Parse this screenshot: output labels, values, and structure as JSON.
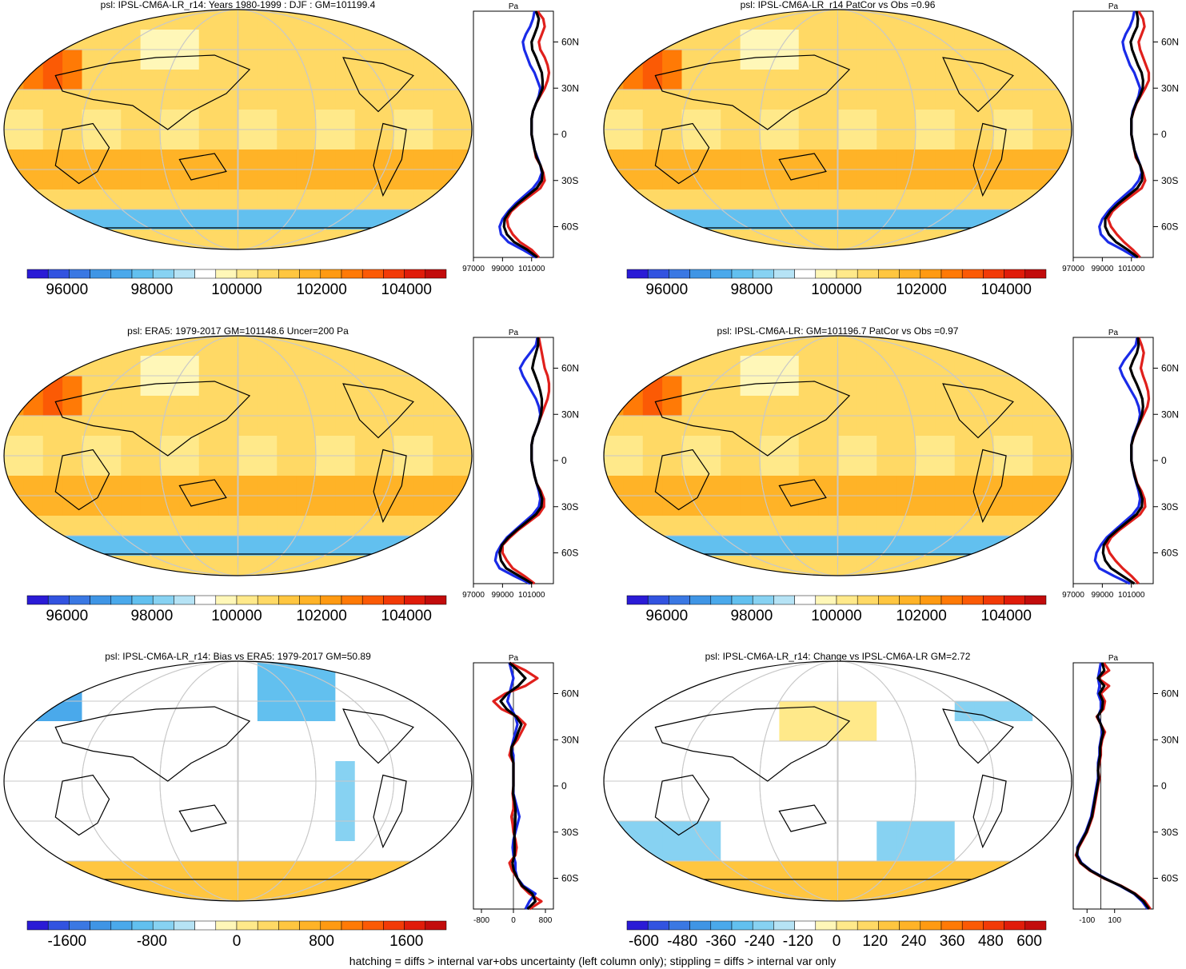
{
  "figure_caption": "hatching = diffs > internal var+obs uncertainty (left column only); stippling = diffs > internal var only",
  "variable": "psl",
  "profile_unit": "Pa",
  "latitude_labels": [
    "60N",
    "30N",
    "0",
    "30S",
    "60S"
  ],
  "colors": {
    "scale": [
      "#2a1bd6",
      "#3253e0",
      "#3a78e3",
      "#3f95e5",
      "#4aa9eb",
      "#62c0ef",
      "#87d2f2",
      "#b6e3f5",
      "#ffffff",
      "#fff7b8",
      "#ffe98a",
      "#ffd965",
      "#ffc640",
      "#ffb327",
      "#ff9a12",
      "#ff7a06",
      "#fb5a05",
      "#f23a07",
      "#e01c0a",
      "#c20c0c"
    ],
    "coast": "#000000",
    "graticule": "#c8c8c8",
    "line_model": "#e0201c",
    "line_obs": "#1a2be8",
    "line_mean": "#000000"
  },
  "chart_data": [
    {
      "type": "heatmap",
      "name": "model-climatology",
      "title": "psl: IPSL-CM6A-LR_r14: Years 1980-1999 : DJF : GM=101199.4",
      "colorbar_ticks": [
        "96000",
        "98000",
        "100000",
        "102000",
        "104000"
      ],
      "profile_ticks": [
        "97000",
        "99000",
        "101000"
      ],
      "profile_xlim": [
        97000,
        102500
      ],
      "profile_lat": [
        80,
        75,
        70,
        65,
        60,
        55,
        50,
        45,
        40,
        35,
        30,
        25,
        20,
        15,
        10,
        5,
        0,
        -5,
        -10,
        -15,
        -20,
        -25,
        -30,
        -35,
        -40,
        -45,
        -50,
        -55,
        -60,
        -65,
        -70,
        -75,
        -80
      ],
      "profile_series": [
        {
          "name": "model",
          "values": [
            101400,
            101800,
            101900,
            101700,
            101500,
            101600,
            101900,
            102100,
            102200,
            102100,
            101900,
            101600,
            101300,
            101100,
            101000,
            101000,
            101000,
            101100,
            101200,
            101300,
            101600,
            101800,
            101900,
            101600,
            100900,
            100200,
            99600,
            99300,
            99400,
            99700,
            100200,
            101000,
            101500
          ]
        },
        {
          "name": "obs",
          "values": [
            101200,
            101100,
            100900,
            100600,
            100400,
            100500,
            100700,
            100900,
            101200,
            101400,
            101600,
            101500,
            101300,
            101100,
            101000,
            101000,
            101000,
            101100,
            101200,
            101400,
            101600,
            101700,
            101500,
            101100,
            100500,
            99900,
            99400,
            99000,
            98800,
            98900,
            99400,
            100400,
            101300
          ]
        },
        {
          "name": "mean",
          "values": [
            101300,
            101500,
            101400,
            101200,
            101000,
            101050,
            101300,
            101500,
            101700,
            101750,
            101750,
            101550,
            101300,
            101100,
            101000,
            101000,
            101000,
            101100,
            101200,
            101350,
            101600,
            101750,
            101700,
            101350,
            100700,
            100050,
            99500,
            99150,
            99100,
            99300,
            99800,
            100700,
            101400
          ]
        }
      ]
    },
    {
      "type": "heatmap",
      "name": "model-climatology-patcor",
      "title": "psl: IPSL-CM6A-LR_r14 PatCor vs Obs =0.96",
      "colorbar_ticks": [
        "96000",
        "98000",
        "100000",
        "102000",
        "104000"
      ],
      "profile_ticks": [
        "97000",
        "99000",
        "101000"
      ],
      "profile_xlim": [
        97000,
        102500
      ],
      "profile_lat": [
        80,
        75,
        70,
        65,
        60,
        55,
        50,
        45,
        40,
        35,
        30,
        25,
        20,
        15,
        10,
        5,
        0,
        -5,
        -10,
        -15,
        -20,
        -25,
        -30,
        -35,
        -40,
        -45,
        -50,
        -55,
        -60,
        -65,
        -70,
        -75,
        -80
      ],
      "profile_series": [
        {
          "name": "model",
          "values": [
            101500,
            101800,
            101900,
            101700,
            101500,
            101600,
            101800,
            102000,
            102200,
            102200,
            101950,
            101650,
            101350,
            101150,
            101000,
            101000,
            101000,
            101100,
            101200,
            101300,
            101600,
            101800,
            101950,
            101700,
            101000,
            100300,
            99700,
            99400,
            99600,
            100000,
            100500,
            101100,
            101600
          ]
        },
        {
          "name": "obs",
          "values": [
            101200,
            101100,
            100900,
            100600,
            100400,
            100500,
            100700,
            100900,
            101200,
            101400,
            101600,
            101500,
            101300,
            101100,
            101000,
            101000,
            101000,
            101100,
            101200,
            101400,
            101600,
            101700,
            101500,
            101100,
            100500,
            99900,
            99400,
            99000,
            98800,
            98900,
            99400,
            100400,
            101300
          ]
        },
        {
          "name": "mean",
          "values": [
            101350,
            101450,
            101400,
            101150,
            100950,
            101050,
            101250,
            101450,
            101700,
            101800,
            101780,
            101580,
            101330,
            101130,
            101000,
            101000,
            101000,
            101100,
            101200,
            101350,
            101600,
            101750,
            101730,
            101400,
            100750,
            100100,
            99550,
            99200,
            99200,
            99450,
            99950,
            100750,
            101450
          ]
        }
      ]
    },
    {
      "type": "heatmap",
      "name": "observation-climatology",
      "title": "psl: ERA5: 1979-2017 GM=101148.6 Uncer=200 Pa",
      "colorbar_ticks": [
        "96000",
        "98000",
        "100000",
        "102000",
        "104000"
      ],
      "profile_ticks": [
        "97000",
        "99000",
        "101000"
      ],
      "profile_xlim": [
        97000,
        102500
      ],
      "profile_lat": [
        80,
        75,
        70,
        65,
        60,
        55,
        50,
        45,
        40,
        35,
        30,
        25,
        20,
        15,
        10,
        5,
        0,
        -5,
        -10,
        -15,
        -20,
        -25,
        -30,
        -35,
        -40,
        -45,
        -50,
        -55,
        -60,
        -65,
        -70,
        -75,
        -80
      ],
      "profile_series": [
        {
          "name": "model",
          "values": [
            101500,
            101600,
            101700,
            101800,
            101900,
            102100,
            102200,
            102200,
            102100,
            101900,
            101700,
            101500,
            101300,
            101100,
            101000,
            101000,
            101000,
            101100,
            101200,
            101350,
            101650,
            101850,
            101850,
            101500,
            100800,
            100100,
            99500,
            99000,
            99000,
            99300,
            99700,
            100500,
            101200
          ]
        },
        {
          "name": "obs",
          "values": [
            101400,
            101300,
            100900,
            100500,
            100200,
            100400,
            100700,
            101000,
            101300,
            101500,
            101600,
            101500,
            101300,
            101100,
            101000,
            101000,
            101000,
            101100,
            101200,
            101350,
            101500,
            101600,
            101500,
            101100,
            100500,
            99900,
            99300,
            98900,
            98600,
            98500,
            98800,
            99800,
            100900
          ]
        },
        {
          "name": "mean",
          "values": [
            101450,
            101450,
            101300,
            101150,
            101050,
            101250,
            101450,
            101600,
            101700,
            101700,
            101650,
            101500,
            101300,
            101100,
            101000,
            101000,
            101000,
            101100,
            101200,
            101350,
            101575,
            101725,
            101675,
            101300,
            100650,
            100000,
            99400,
            98950,
            98800,
            98900,
            99250,
            100150,
            101050
          ]
        }
      ]
    },
    {
      "type": "heatmap",
      "name": "multimodel-climatology",
      "title": "psl: IPSL-CM6A-LR: GM=101196.7 PatCor vs Obs =0.97",
      "colorbar_ticks": [
        "96000",
        "98000",
        "100000",
        "102000",
        "104000"
      ],
      "profile_ticks": [
        "97000",
        "99000",
        "101000"
      ],
      "profile_xlim": [
        97000,
        102500
      ],
      "profile_lat": [
        80,
        75,
        70,
        65,
        60,
        55,
        50,
        45,
        40,
        35,
        30,
        25,
        20,
        15,
        10,
        5,
        0,
        -5,
        -10,
        -15,
        -20,
        -25,
        -30,
        -35,
        -40,
        -45,
        -50,
        -55,
        -60,
        -65,
        -70,
        -75,
        -80
      ],
      "profile_series": [
        {
          "name": "model",
          "values": [
            101500,
            101700,
            101850,
            101750,
            101650,
            101800,
            102000,
            102150,
            102200,
            102100,
            101850,
            101600,
            101350,
            101150,
            101000,
            101000,
            101000,
            101100,
            101250,
            101400,
            101700,
            101900,
            101950,
            101600,
            100900,
            100200,
            99600,
            99300,
            99500,
            99900,
            100400,
            101000,
            101500
          ]
        },
        {
          "name": "obs",
          "values": [
            101400,
            101300,
            100900,
            100500,
            100200,
            100400,
            100700,
            101000,
            101300,
            101500,
            101600,
            101500,
            101300,
            101100,
            101000,
            101000,
            101000,
            101100,
            101200,
            101350,
            101500,
            101600,
            101500,
            101100,
            100500,
            99900,
            99300,
            98900,
            98600,
            98500,
            98800,
            99800,
            100900
          ]
        },
        {
          "name": "mean",
          "values": [
            101450,
            101500,
            101380,
            101120,
            100920,
            101100,
            101350,
            101570,
            101750,
            101800,
            101730,
            101550,
            101330,
            101130,
            101000,
            101000,
            101000,
            101100,
            101220,
            101380,
            101600,
            101750,
            101720,
            101350,
            100700,
            100050,
            99450,
            99100,
            99050,
            99200,
            99600,
            100400,
            101200
          ]
        }
      ]
    },
    {
      "type": "heatmap",
      "name": "bias-vs-observations",
      "title": "psl: IPSL-CM6A-LR_r14: Bias vs ERA5: 1979-2017 GM=50.89",
      "colorbar_ticks": [
        "-1600",
        "-800",
        "0",
        "800",
        "1600"
      ],
      "profile_ticks": [
        "-800",
        "0",
        "800"
      ],
      "profile_xlim": [
        -1000,
        1000
      ],
      "profile_lat": [
        80,
        75,
        70,
        65,
        60,
        55,
        50,
        45,
        40,
        35,
        30,
        25,
        20,
        15,
        10,
        5,
        0,
        -5,
        -10,
        -15,
        -20,
        -25,
        -30,
        -35,
        -40,
        -45,
        -50,
        -55,
        -60,
        -65,
        -70,
        -75,
        -80
      ],
      "profile_series": [
        {
          "name": "model",
          "values": [
            -100,
            300,
            600,
            300,
            -200,
            -500,
            -300,
            100,
            300,
            200,
            100,
            -50,
            -100,
            0,
            0,
            0,
            0,
            -20,
            0,
            0,
            -50,
            -20,
            0,
            50,
            80,
            50,
            -100,
            -30,
            100,
            200,
            400,
            700,
            400
          ]
        },
        {
          "name": "obs",
          "values": [
            -100,
            -50,
            0,
            -50,
            -100,
            -150,
            -50,
            50,
            100,
            50,
            0,
            -50,
            0,
            0,
            0,
            0,
            0,
            0,
            50,
            100,
            150,
            100,
            50,
            0,
            -20,
            0,
            50,
            50,
            100,
            250,
            550,
            400,
            300
          ]
        },
        {
          "name": "mean",
          "values": [
            -100,
            120,
            300,
            120,
            -150,
            -320,
            -170,
            70,
            200,
            120,
            50,
            -50,
            -50,
            0,
            0,
            0,
            0,
            -10,
            25,
            50,
            50,
            40,
            25,
            25,
            30,
            25,
            -25,
            10,
            100,
            220,
            470,
            550,
            350
          ]
        }
      ]
    },
    {
      "type": "heatmap",
      "name": "change-vs-multimodel",
      "title": "psl: IPSL-CM6A-LR_r14: Change vs IPSL-CM6A-LR GM=2.72",
      "colorbar_ticks": [
        "-600",
        "-480",
        "-360",
        "-240",
        "-120",
        "0",
        "120",
        "240",
        "360",
        "480",
        "600"
      ],
      "profile_ticks": [
        "-100",
        "100"
      ],
      "profile_xlim": [
        -200,
        380
      ],
      "profile_lat": [
        80,
        75,
        70,
        65,
        60,
        55,
        50,
        45,
        40,
        35,
        30,
        25,
        20,
        15,
        10,
        5,
        0,
        -5,
        -10,
        -15,
        -20,
        -25,
        -30,
        -35,
        -40,
        -45,
        -50,
        -55,
        -60,
        -65,
        -70,
        -75,
        -80
      ],
      "profile_series": [
        {
          "name": "model",
          "values": [
            20,
            60,
            -20,
            60,
            0,
            30,
            20,
            -30,
            0,
            30,
            10,
            0,
            0,
            -10,
            -20,
            -10,
            -20,
            -30,
            -40,
            -50,
            -60,
            -80,
            -100,
            -130,
            -160,
            -180,
            -150,
            -80,
            20,
            150,
            250,
            320,
            360
          ]
        },
        {
          "name": "obs",
          "values": [
            0,
            -10,
            -20,
            -10,
            -20,
            0,
            0,
            -20,
            0,
            10,
            0,
            -10,
            -10,
            -20,
            -20,
            -20,
            -30,
            -40,
            -50,
            -60,
            -70,
            -90,
            -110,
            -140,
            -170,
            -170,
            -140,
            -70,
            30,
            140,
            240,
            300,
            340
          ]
        },
        {
          "name": "mean",
          "values": [
            10,
            25,
            -20,
            25,
            -10,
            15,
            10,
            -25,
            0,
            20,
            5,
            -5,
            -5,
            -15,
            -20,
            -15,
            -25,
            -35,
            -45,
            -55,
            -65,
            -85,
            -105,
            -135,
            -165,
            -175,
            -145,
            -75,
            25,
            145,
            245,
            310,
            350
          ]
        }
      ]
    }
  ]
}
